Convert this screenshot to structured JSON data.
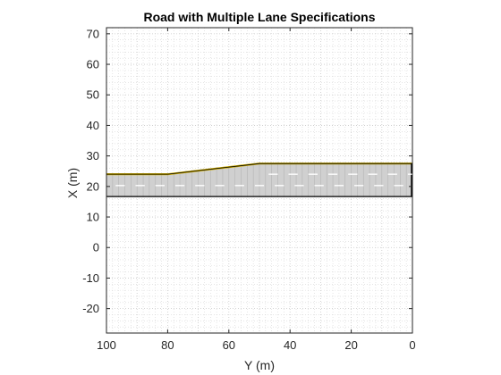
{
  "chart_data": {
    "type": "line",
    "title": "Road with Multiple Lane Specifications",
    "xlabel": "Y (m)",
    "ylabel": "X (m)",
    "x_axis": {
      "range": [
        100,
        0
      ],
      "direction": "reversed",
      "ticks": [
        100,
        80,
        60,
        40,
        20,
        0
      ]
    },
    "y_axis": {
      "range": [
        -28,
        72
      ],
      "ticks": [
        70,
        60,
        50,
        40,
        30,
        20,
        10,
        0,
        -10,
        -20
      ]
    },
    "grid": {
      "major": true,
      "minor": true,
      "style": "dotted"
    },
    "colors": {
      "road_fill": "#d0d0d0",
      "road_edge": "#000000",
      "yellow_line": "#c8a800",
      "lane_marking": "#ffffff",
      "grid": "#c8c8c8"
    },
    "road": {
      "right_edge_y": 100,
      "left_edge_y": 0,
      "bottom_x": 16.7,
      "top_edge": [
        {
          "Y": 100,
          "X": 24
        },
        {
          "Y": 80,
          "X": 24
        },
        {
          "Y": 50,
          "X": 27.5
        },
        {
          "Y": 0,
          "X": 27.5
        }
      ]
    },
    "lane_markings": [
      {
        "name": "center-dash-row",
        "X": 20.3,
        "Y_from": 100,
        "Y_to": 0
      },
      {
        "name": "upper-dash-row",
        "X": 24.0,
        "Y_from": 50,
        "Y_to": 0
      }
    ]
  }
}
